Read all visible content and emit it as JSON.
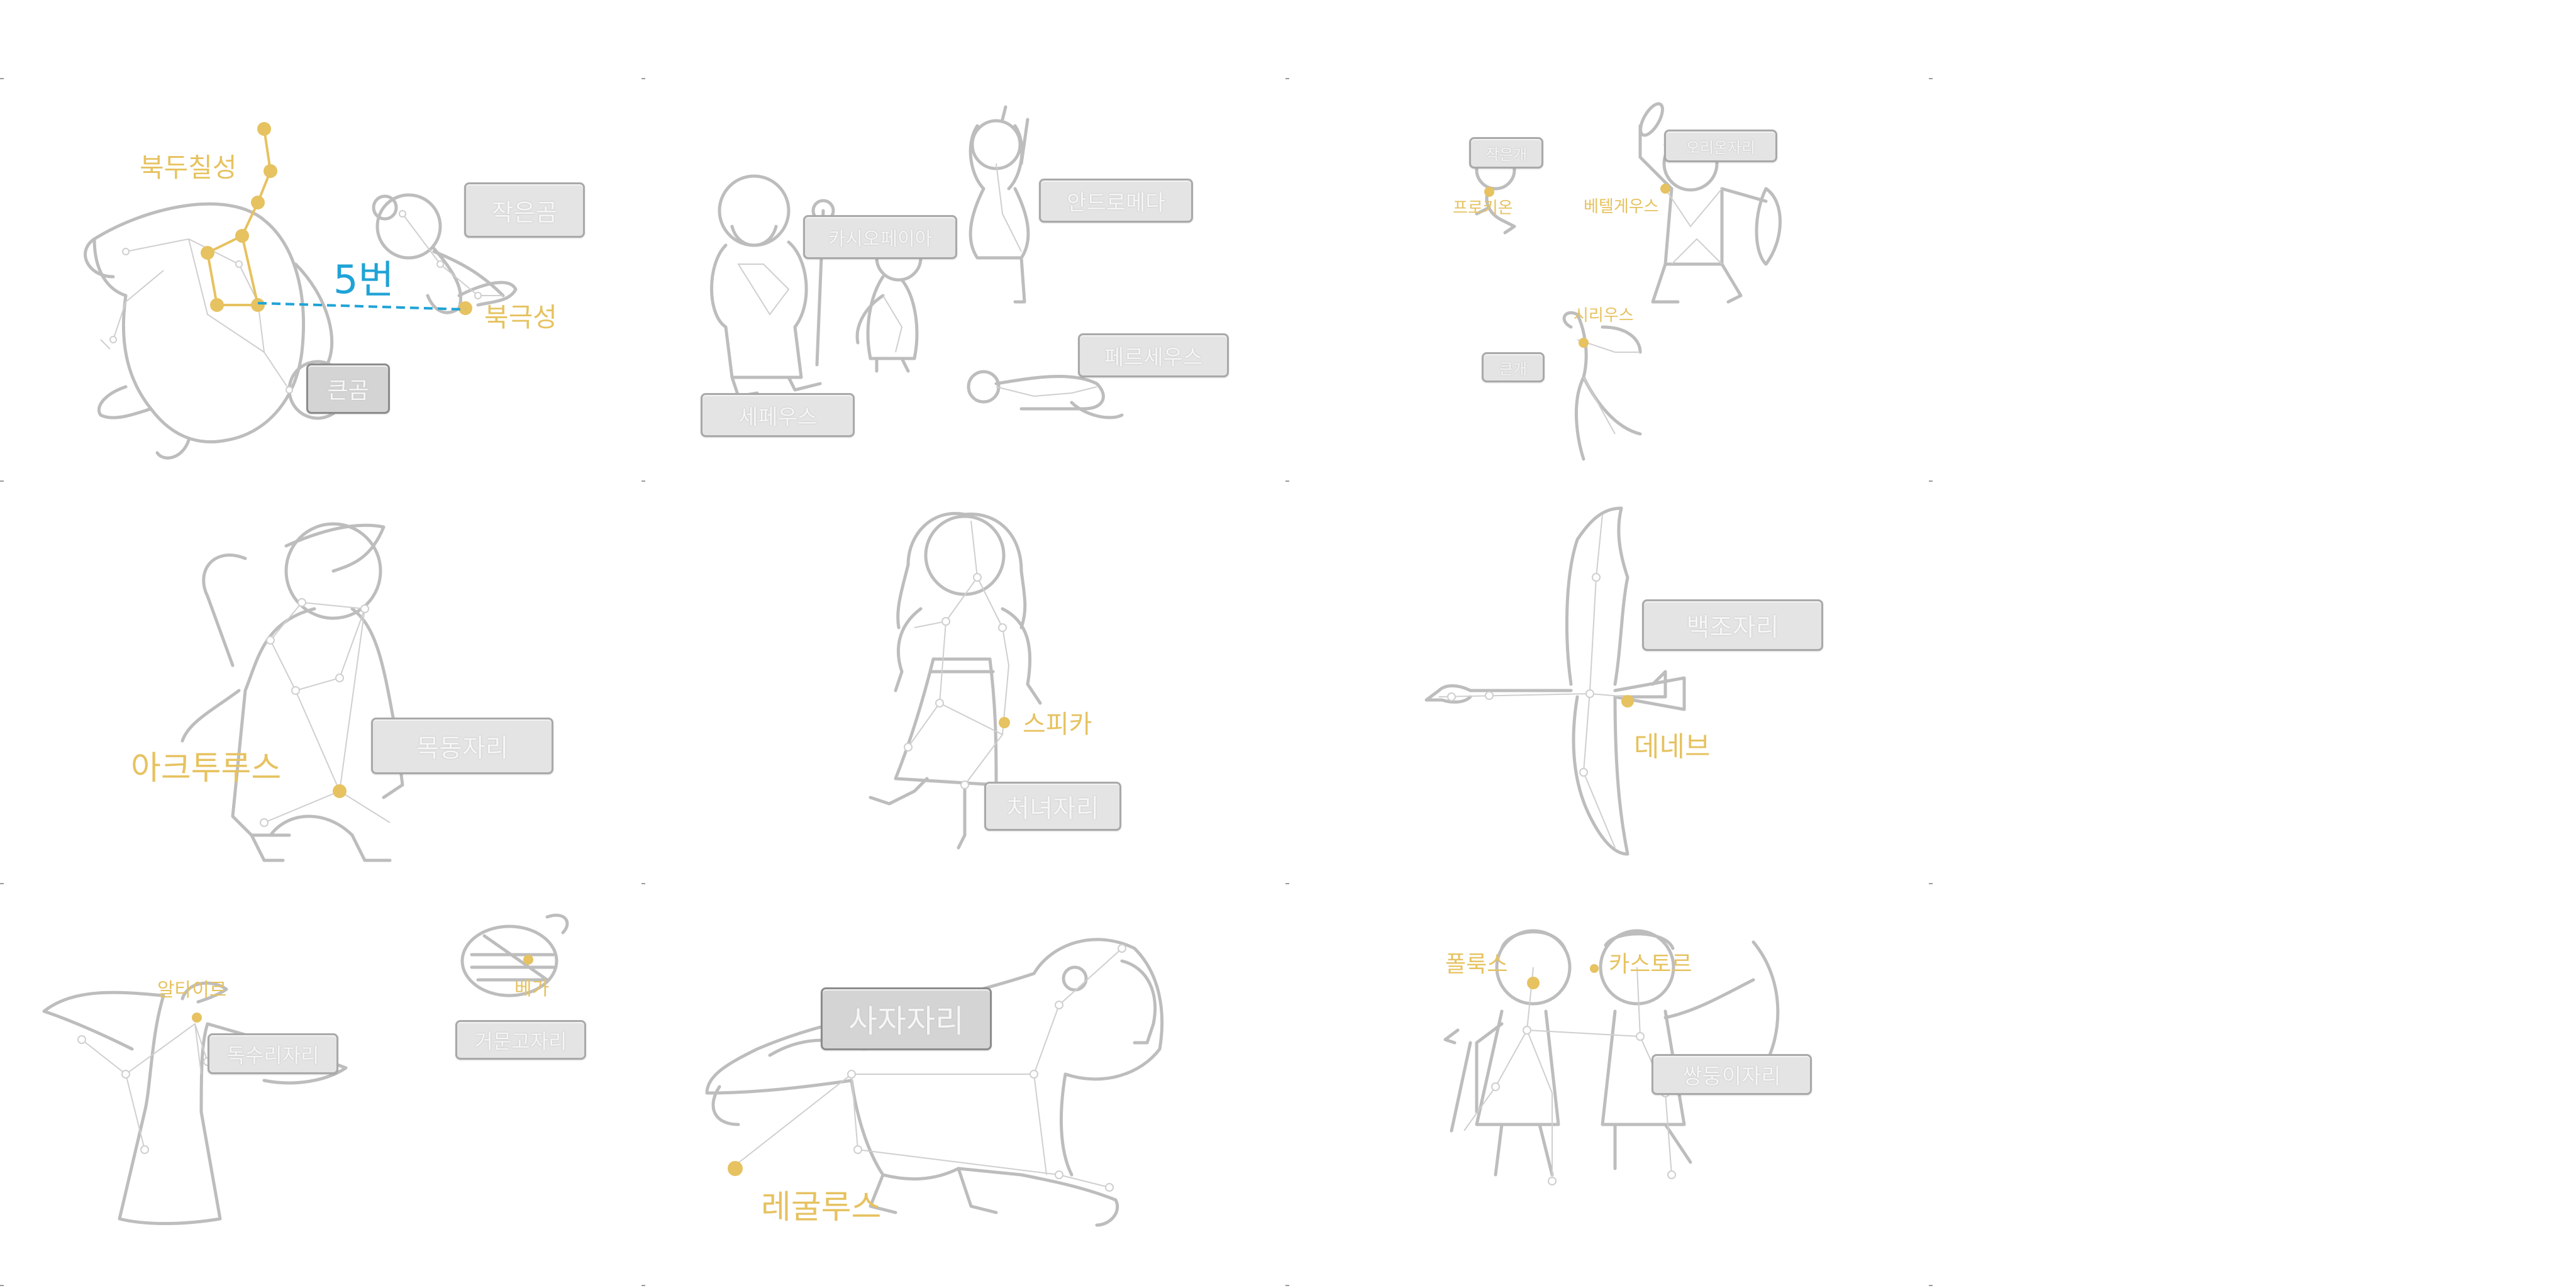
{
  "colors": {
    "line": "#bdbdbd",
    "gold": "#e6c260",
    "accent": "#1fa3d6",
    "box_fill": "#e4e4e4",
    "box_border": "#a9a9a9"
  },
  "panels": {
    "ursa": {
      "star_labels": {
        "big_dipper": "북두칠성",
        "polaris": "북극성"
      },
      "hint": "5번",
      "boxes": {
        "little_bear": "작은곰",
        "big_bear": "큰곰"
      }
    },
    "cepheus": {
      "boxes": {
        "cepheus": "세페우스",
        "cassiopeia": "카시오페이아",
        "andromeda": "안드로메다",
        "perseus": "페르세우스"
      }
    },
    "orion": {
      "star_labels": {
        "procyon": "프로키온",
        "betelgeuse": "베텔게우스",
        "sirius": "시리우스"
      },
      "boxes": {
        "small_dog": "작은개",
        "orion": "오리온자리",
        "big_dog": "큰개"
      }
    },
    "bootes": {
      "star_labels": {
        "arcturus": "아크투루스"
      },
      "boxes": {
        "bootes": "목동자리"
      }
    },
    "virgo": {
      "star_labels": {
        "spica": "스피카"
      },
      "boxes": {
        "virgo": "처녀자리"
      }
    },
    "cygnus": {
      "star_labels": {
        "deneb": "데네브"
      },
      "boxes": {
        "cygnus": "백조자리"
      }
    },
    "aquila": {
      "star_labels": {
        "altair": "알타이르",
        "vega": "베가"
      },
      "boxes": {
        "aquila": "독수리자리",
        "lyra": "거문고자리"
      }
    },
    "leo": {
      "star_labels": {
        "regulus": "레굴루스"
      },
      "boxes": {
        "leo": "사자자리"
      }
    },
    "gemini": {
      "star_labels": {
        "pollux": "폴룩스",
        "castor": "카스토르"
      },
      "boxes": {
        "gemini": "쌍둥이자리"
      }
    }
  }
}
